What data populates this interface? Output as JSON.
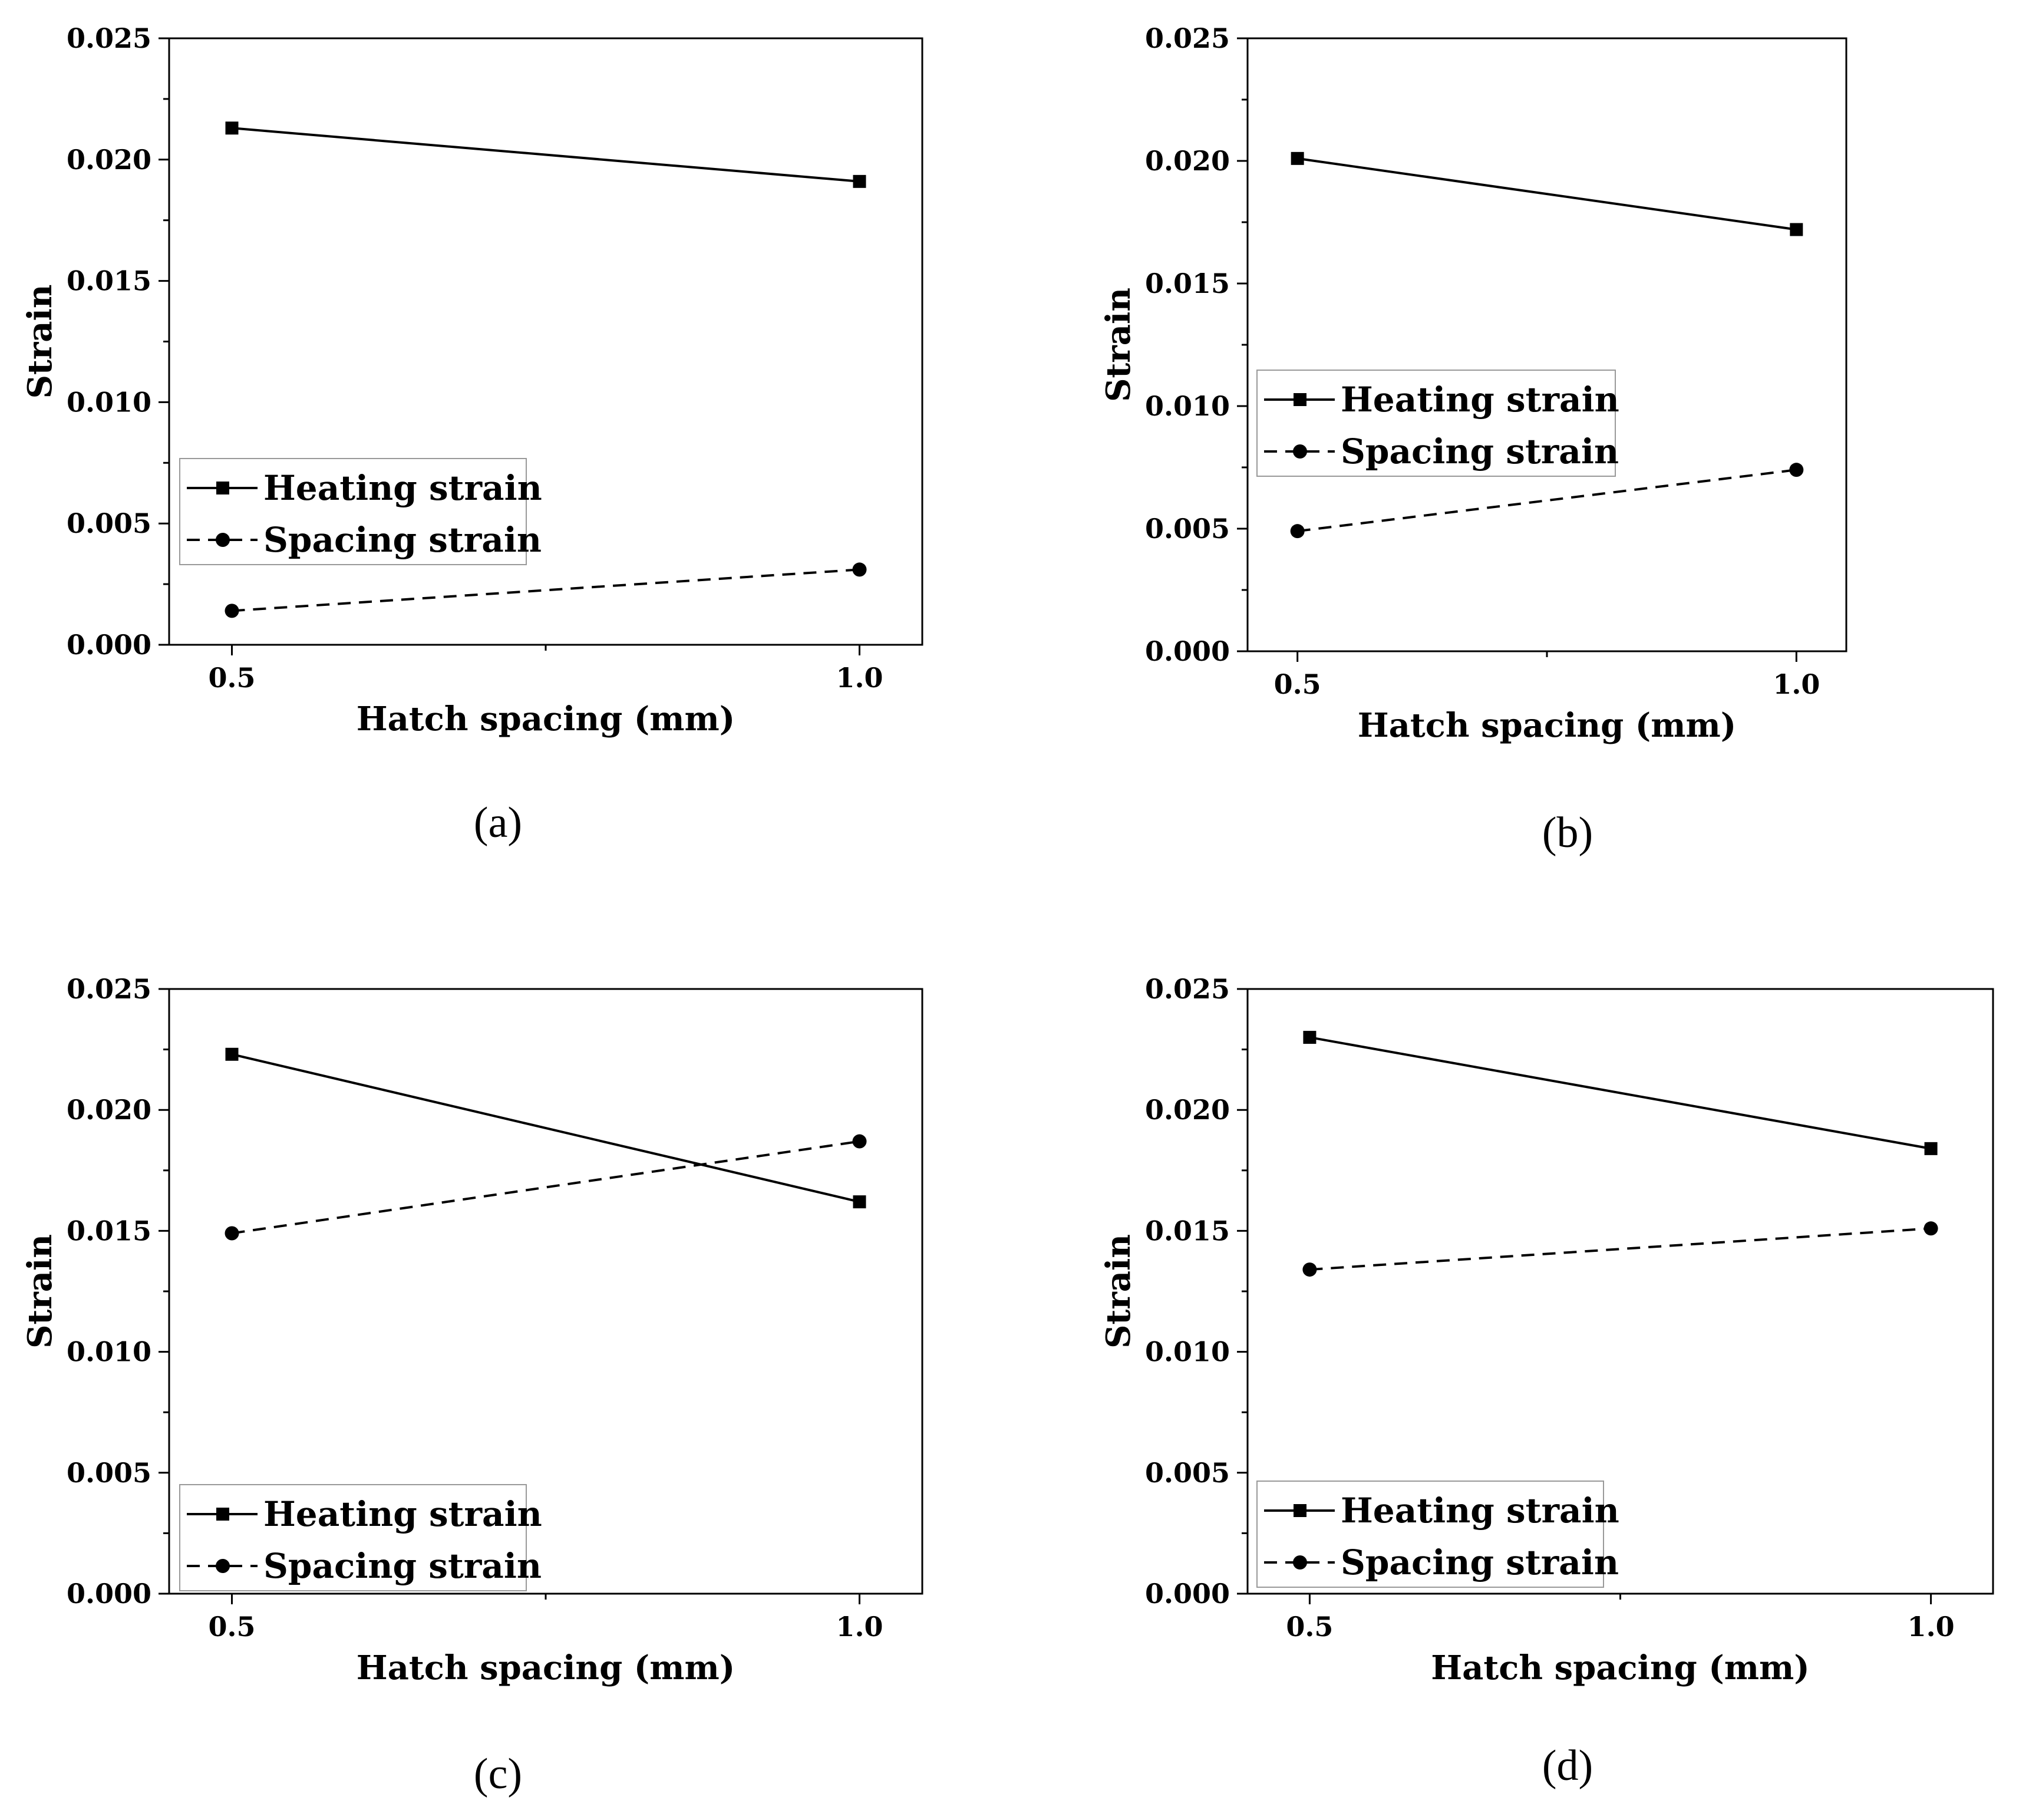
{
  "chart_data": [
    {
      "type": "line",
      "panel_label": "(a)",
      "xlabel": "Hatch spacing (mm)",
      "ylabel": "Strain",
      "x": [
        0.5,
        1.0
      ],
      "x_tick_labels": [
        "0.5",
        "1.0"
      ],
      "y_tick_labels": [
        "0.000",
        "0.005",
        "0.010",
        "0.015",
        "0.020",
        "0.025"
      ],
      "ylim": [
        0,
        0.025
      ],
      "xlim": [
        0.45,
        1.05
      ],
      "legend_position": "lower-left",
      "series": [
        {
          "name": "Heating strain",
          "marker": "square",
          "line": "solid",
          "values": [
            0.0213,
            0.0191
          ]
        },
        {
          "name": "Spacing strain",
          "marker": "circle",
          "line": "dashed",
          "values": [
            0.0014,
            0.0031
          ]
        }
      ]
    },
    {
      "type": "line",
      "panel_label": "(b)",
      "xlabel": "Hatch spacing (mm)",
      "ylabel": "Strain",
      "x": [
        0.5,
        1.0
      ],
      "x_tick_labels": [
        "0.5",
        "1.0"
      ],
      "y_tick_labels": [
        "0.000",
        "0.005",
        "0.010",
        "0.015",
        "0.020",
        "0.025"
      ],
      "ylim": [
        0,
        0.025
      ],
      "xlim": [
        0.45,
        1.05
      ],
      "legend_position": "middle-left",
      "series": [
        {
          "name": "Heating strain",
          "marker": "square",
          "line": "solid",
          "values": [
            0.0201,
            0.0172
          ]
        },
        {
          "name": "Spacing strain",
          "marker": "circle",
          "line": "dashed",
          "values": [
            0.0049,
            0.0074
          ]
        }
      ]
    },
    {
      "type": "line",
      "panel_label": "(c)",
      "xlabel": "Hatch spacing (mm)",
      "ylabel": "Strain",
      "x": [
        0.5,
        1.0
      ],
      "x_tick_labels": [
        "0.5",
        "1.0"
      ],
      "y_tick_labels": [
        "0.000",
        "0.005",
        "0.010",
        "0.015",
        "0.020",
        "0.025"
      ],
      "ylim": [
        0,
        0.025
      ],
      "xlim": [
        0.45,
        1.05
      ],
      "legend_position": "lower-left",
      "series": [
        {
          "name": "Heating strain",
          "marker": "square",
          "line": "solid",
          "values": [
            0.0223,
            0.0162
          ]
        },
        {
          "name": "Spacing strain",
          "marker": "circle",
          "line": "dashed",
          "values": [
            0.0149,
            0.0187
          ]
        }
      ]
    },
    {
      "type": "line",
      "panel_label": "(d)",
      "xlabel": "Hatch spacing (mm)",
      "ylabel": "Strain",
      "x": [
        0.5,
        1.0
      ],
      "x_tick_labels": [
        "0.5",
        "1.0"
      ],
      "y_tick_labels": [
        "0.000",
        "0.005",
        "0.010",
        "0.015",
        "0.020",
        "0.025"
      ],
      "ylim": [
        0,
        0.025
      ],
      "xlim": [
        0.45,
        1.05
      ],
      "legend_position": "lower-left",
      "series": [
        {
          "name": "Heating strain",
          "marker": "square",
          "line": "solid",
          "values": [
            0.023,
            0.0184
          ]
        },
        {
          "name": "Spacing strain",
          "marker": "circle",
          "line": "dashed",
          "values": [
            0.0134,
            0.0151
          ]
        }
      ]
    }
  ]
}
